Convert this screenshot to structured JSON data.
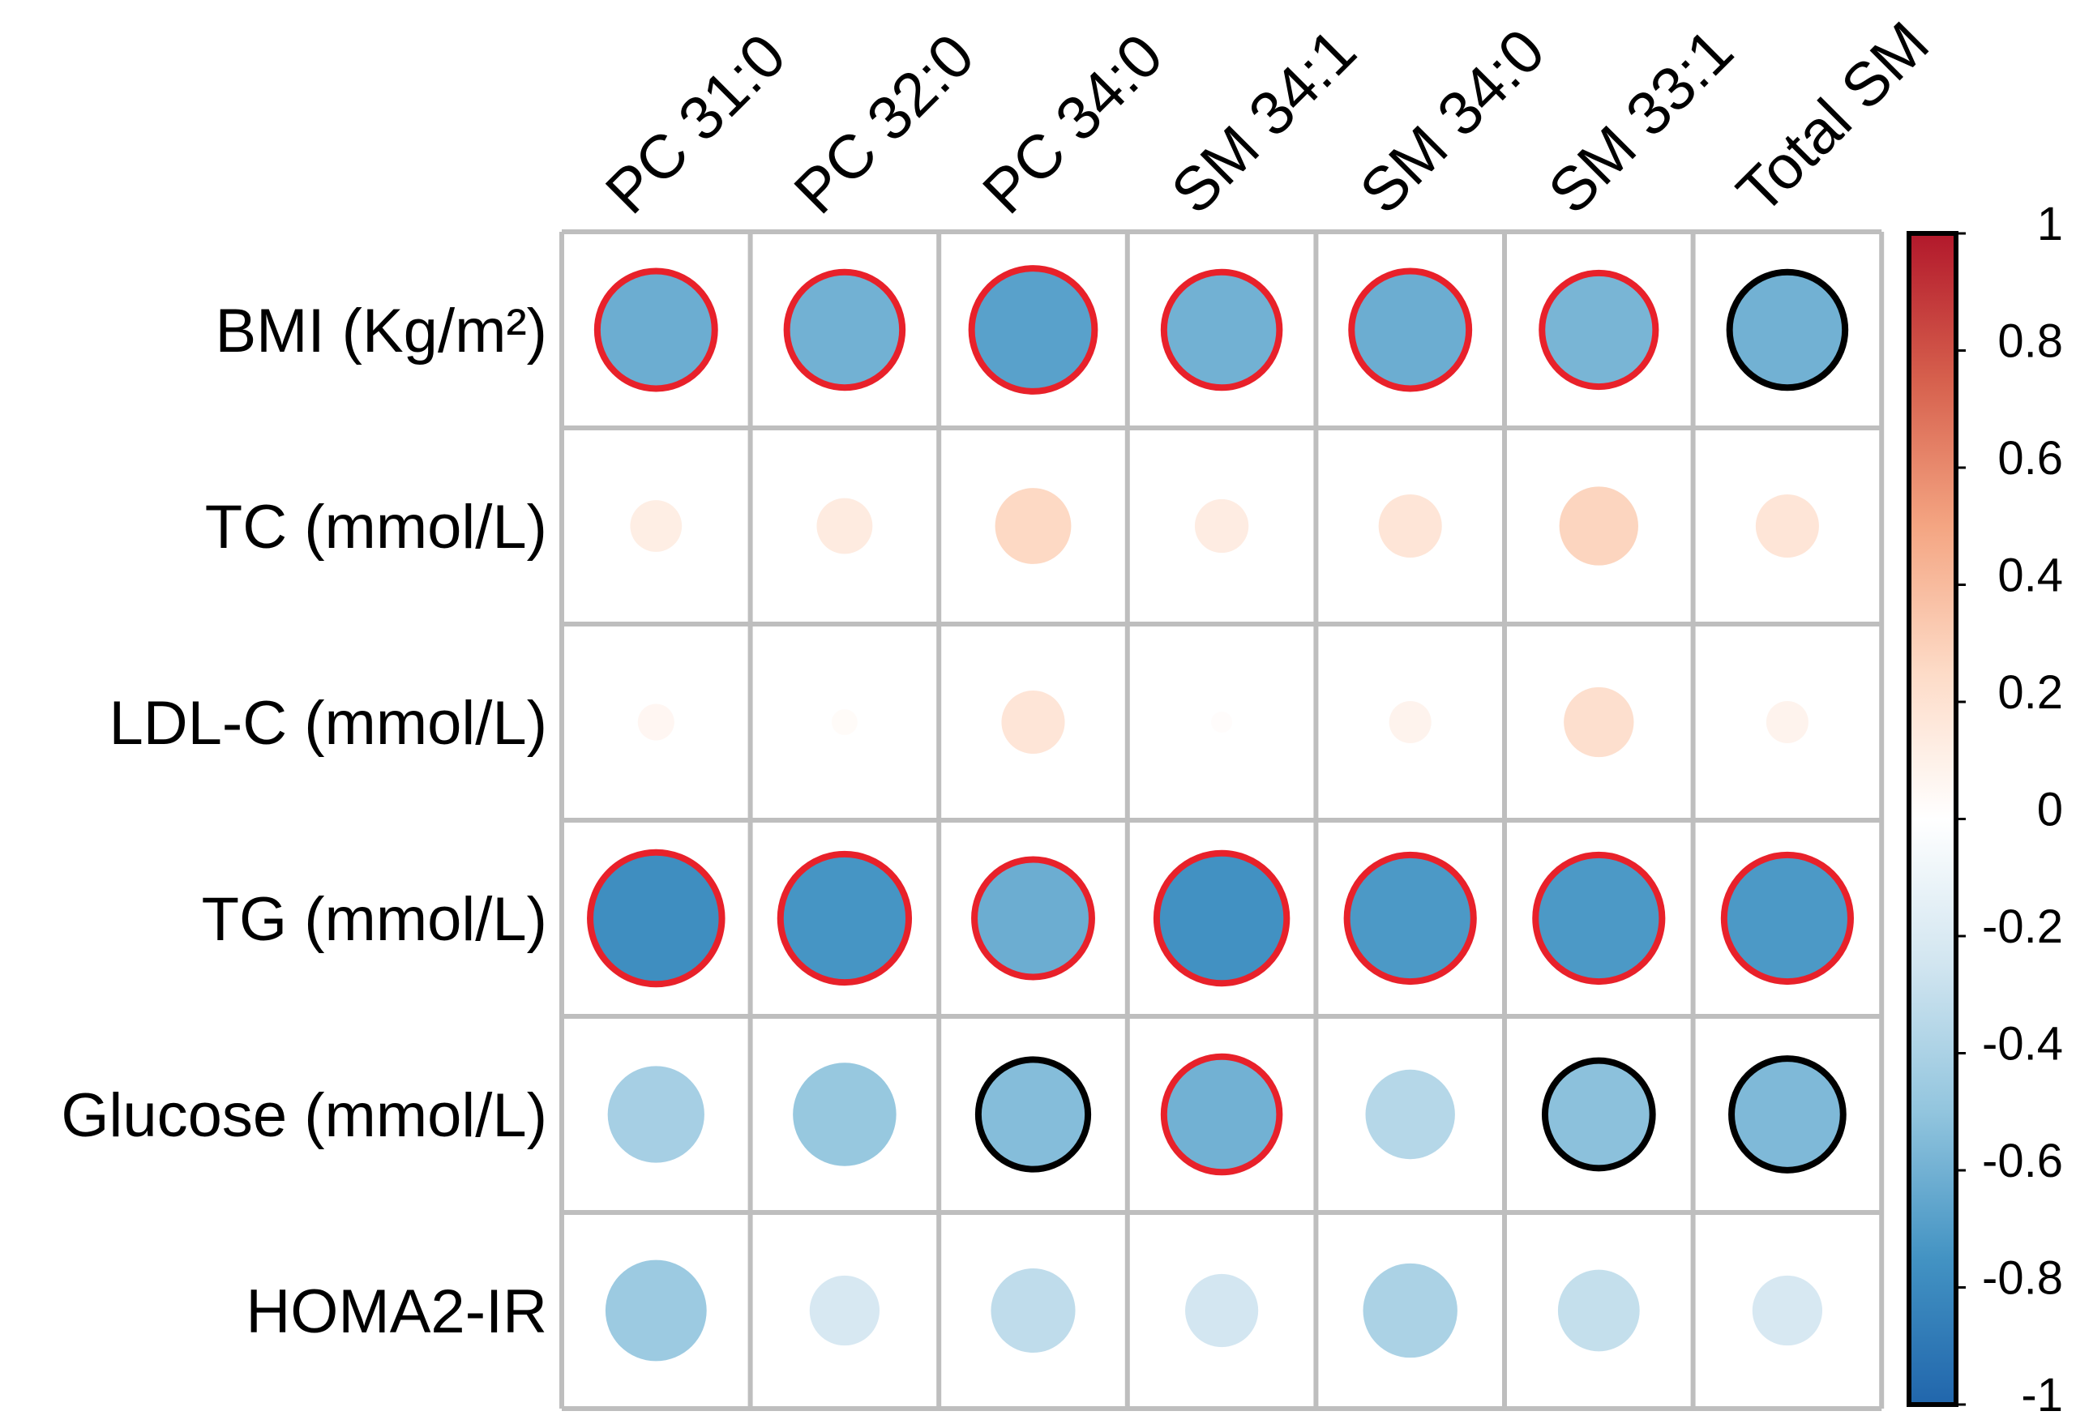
{
  "chart_data": {
    "type": "correlation-heatmap",
    "columns": [
      "PC 31:0",
      "PC 32:0",
      "PC 34:0",
      "SM 34:1",
      "SM 34:0",
      "SM 33:1",
      "Total SM"
    ],
    "rows": [
      "BMI (Kg/m²)",
      "TC (mmol/L)",
      "LDL-C (mmol/L)",
      "TG (mmol/L)",
      "Glucose (mmol/L)",
      "HOMA2-IR"
    ],
    "values": [
      [
        -0.62,
        -0.6,
        -0.68,
        -0.6,
        -0.62,
        -0.58,
        -0.6
      ],
      [
        0.12,
        0.14,
        0.26,
        0.13,
        0.18,
        0.28,
        0.18
      ],
      [
        0.06,
        0.03,
        0.18,
        0.02,
        0.08,
        0.22,
        0.08
      ],
      [
        -0.78,
        -0.74,
        -0.62,
        -0.76,
        -0.72,
        -0.72,
        -0.72
      ],
      [
        -0.42,
        -0.48,
        -0.54,
        -0.6,
        -0.36,
        -0.52,
        -0.56
      ],
      [
        -0.46,
        -0.22,
        -0.32,
        -0.24,
        -0.4,
        -0.3,
        -0.22
      ]
    ],
    "significance": [
      [
        "red",
        "red",
        "red",
        "red",
        "red",
        "red",
        "black"
      ],
      [
        "none",
        "none",
        "none",
        "none",
        "none",
        "none",
        "none"
      ],
      [
        "none",
        "none",
        "none",
        "none",
        "none",
        "none",
        "none"
      ],
      [
        "red",
        "red",
        "red",
        "red",
        "red",
        "red",
        "red"
      ],
      [
        "none",
        "none",
        "black",
        "red",
        "none",
        "black",
        "black"
      ],
      [
        "none",
        "none",
        "none",
        "none",
        "none",
        "none",
        "none"
      ]
    ],
    "colorbar": {
      "min": -1,
      "max": 1,
      "ticks": [
        1,
        0.8,
        0.6,
        0.4,
        0.2,
        0,
        -0.2,
        -0.4,
        -0.6,
        -0.8,
        -1
      ],
      "tick_labels": [
        "1",
        "0.8",
        "0.6",
        "0.4",
        "0.2",
        "0",
        "-0.2",
        "-0.4",
        "-0.6",
        "-0.8",
        "-1"
      ],
      "colors_high_to_low": [
        "#b2182b",
        "#d6604d",
        "#f4a582",
        "#fddbc7",
        "#ffffff",
        "#d1e5f0",
        "#92c5de",
        "#4393c3",
        "#2166ac"
      ]
    },
    "colors": {
      "grid": "#bebebe",
      "sig_red": "#e8212a",
      "sig_black": "#000000",
      "colorbar_border": "#000000"
    }
  }
}
